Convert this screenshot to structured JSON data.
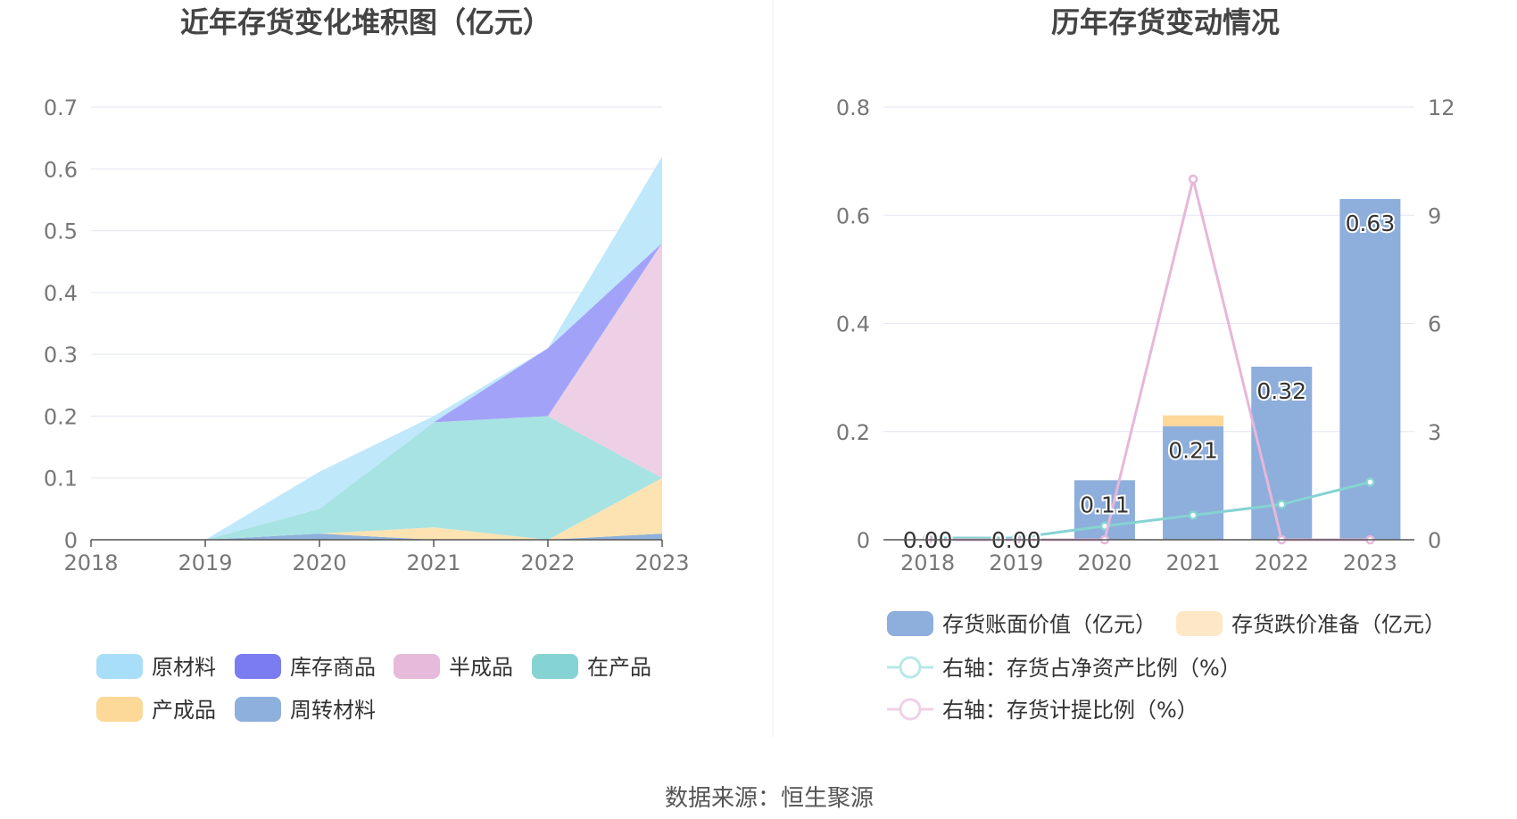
{
  "source": "数据来源：恒生聚源",
  "chart_data": [
    {
      "type": "area",
      "stacked": true,
      "title": "近年存货变化堆积图（亿元）",
      "x": [
        "2018",
        "2019",
        "2020",
        "2021",
        "2022",
        "2023"
      ],
      "ylim": [
        0,
        0.7
      ],
      "yticks": [
        "0",
        "0.1",
        "0.2",
        "0.3",
        "0.4",
        "0.5",
        "0.6",
        "0.7"
      ],
      "grid": true,
      "legend_position": "bottom",
      "series": [
        {
          "name": "周转材料",
          "color": "#8eb0dd",
          "values": [
            0,
            0,
            0.01,
            0.0,
            0.0,
            0.01
          ]
        },
        {
          "name": "产成品",
          "color": "#fde3b1",
          "values": [
            0,
            0,
            0.0,
            0.02,
            0.0,
            0.09
          ]
        },
        {
          "name": "在产品",
          "color": "#a8e3e3",
          "values": [
            0,
            0,
            0.04,
            0.17,
            0.2,
            0.0
          ]
        },
        {
          "name": "半成品",
          "color": "#edd0e6",
          "values": [
            0,
            0,
            0.0,
            0.0,
            0.0,
            0.38
          ]
        },
        {
          "name": "库存商品",
          "color": "#a2a3f8",
          "values": [
            0,
            0,
            0.0,
            0.0,
            0.11,
            0.0
          ]
        },
        {
          "name": "原材料",
          "color": "#bfe8fb",
          "values": [
            0,
            0,
            0.06,
            0.01,
            0.0,
            0.14
          ]
        }
      ],
      "legend": [
        {
          "name": "原材料",
          "color": "#a8def8"
        },
        {
          "name": "库存商品",
          "color": "#7a7cf0"
        },
        {
          "name": "半成品",
          "color": "#e7b9da"
        },
        {
          "name": "在产品",
          "color": "#86d3d3"
        },
        {
          "name": "产成品",
          "color": "#fcd999"
        },
        {
          "name": "周转材料",
          "color": "#8eb0dd"
        }
      ]
    },
    {
      "type": "bar",
      "title": "历年存货变动情况",
      "x": [
        "2018",
        "2019",
        "2020",
        "2021",
        "2022",
        "2023"
      ],
      "ylim_left": [
        0,
        0.8
      ],
      "yticks_left": [
        "0",
        "0.2",
        "0.4",
        "0.6",
        "0.8"
      ],
      "ylim_right": [
        0,
        12
      ],
      "yticks_right": [
        "0",
        "3",
        "6",
        "9",
        "12"
      ],
      "grid": true,
      "legend_position": "bottom",
      "bars": [
        {
          "name": "存货账面价值（亿元）",
          "color": "#8eaedb",
          "values": [
            0.0,
            0.0,
            0.11,
            0.21,
            0.32,
            0.63
          ],
          "labels": [
            "0.00",
            "0.00",
            "0.11",
            "0.21",
            "0.32",
            "0.63"
          ]
        },
        {
          "name": "存货跌价准备（亿元）",
          "color": "#fdd898",
          "legend_color": "#fde7c6",
          "values": [
            0,
            0,
            0,
            0.02,
            0,
            0
          ]
        }
      ],
      "lines": [
        {
          "name": "右轴：存货占净资产比例（%）",
          "color": "#86d3d3",
          "legend_color": "#b9e7e7",
          "values": [
            0.05,
            0.05,
            0.38,
            0.68,
            0.98,
            1.6
          ]
        },
        {
          "name": "右轴：存货计提比例（%）",
          "color": "#e7b7da",
          "legend_color": "#f0d1e7",
          "values": [
            0,
            0,
            0,
            10.0,
            0,
            0
          ]
        }
      ]
    }
  ]
}
